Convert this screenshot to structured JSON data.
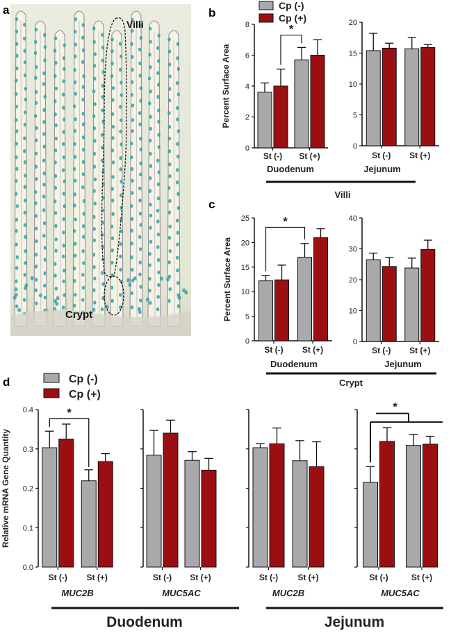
{
  "colors": {
    "cp_neg": "#a9a9ab",
    "cp_pos": "#9b0f12",
    "tissue_bg": "#eef0e2",
    "villus_body": "#f6f4e6",
    "goblet": "#2aa3a6",
    "outline": "#1a1a1a"
  },
  "panel_a": {
    "letter": "a",
    "villi_label": "Villi",
    "crypt_label": "Crypt"
  },
  "panel_b": {
    "letter": "b",
    "group_labels": [
      "Duodenum",
      "Jejunum"
    ],
    "bracket_label": "Villi"
  },
  "panel_c": {
    "letter": "c",
    "group_labels": [
      "Duodenum",
      "Jejunum"
    ],
    "bracket_label": "Crypt"
  },
  "panel_d": {
    "letter": "d",
    "tissue_labels": [
      "Duodenum",
      "Jejunum"
    ]
  },
  "chart_data": [
    {
      "panel": "b",
      "type": "bar",
      "subplots": [
        {
          "group": "Duodenum",
          "categories": [
            "St (-)",
            "St (+)"
          ],
          "ylabel": "Percent Surface Area",
          "ylim": [
            0,
            8
          ],
          "yticks": [
            0,
            2,
            4,
            6,
            8
          ],
          "series": [
            {
              "name": "Cp (-)",
              "values": [
                3.6,
                5.7
              ],
              "errors": [
                0.6,
                0.8
              ]
            },
            {
              "name": "Cp (+)",
              "values": [
                4.0,
                6.0
              ],
              "errors": [
                1.1,
                1.0
              ]
            }
          ],
          "significance": "*"
        },
        {
          "group": "Jejunum",
          "categories": [
            "St (-)",
            "St (+)"
          ],
          "ylim": [
            0,
            20
          ],
          "yticks": [
            0,
            5,
            10,
            15,
            20
          ],
          "series": [
            {
              "name": "Cp (-)",
              "values": [
                15.4,
                15.7
              ],
              "errors": [
                2.8,
                1.8
              ]
            },
            {
              "name": "Cp (+)",
              "values": [
                15.8,
                15.9
              ],
              "errors": [
                0.8,
                0.5
              ]
            }
          ]
        }
      ],
      "legend": [
        "Cp (-)",
        "Cp (+)"
      ],
      "group_bracket": "Villi"
    },
    {
      "panel": "c",
      "type": "bar",
      "subplots": [
        {
          "group": "Duodenum",
          "categories": [
            "St (-)",
            "St (+)"
          ],
          "ylabel": "Percent Surface Area",
          "ylim": [
            0,
            25
          ],
          "yticks": [
            0,
            5,
            10,
            15,
            20,
            25
          ],
          "series": [
            {
              "name": "Cp (-)",
              "values": [
                12.2,
                17.0
              ],
              "errors": [
                1.1,
                2.8
              ]
            },
            {
              "name": "Cp (+)",
              "values": [
                12.4,
                21.0
              ],
              "errors": [
                3.0,
                1.8
              ]
            }
          ],
          "significance": "*"
        },
        {
          "group": "Jejunum",
          "categories": [
            "St (-)",
            "St (+)"
          ],
          "ylim": [
            0,
            40
          ],
          "yticks": [
            0,
            10,
            20,
            30,
            40
          ],
          "series": [
            {
              "name": "Cp (-)",
              "values": [
                26.5,
                23.8
              ],
              "errors": [
                2.1,
                3.2
              ]
            },
            {
              "name": "Cp (+)",
              "values": [
                24.3,
                29.8
              ],
              "errors": [
                2.9,
                3.0
              ]
            }
          ]
        }
      ],
      "group_bracket": "Crypt"
    },
    {
      "panel": "d",
      "type": "bar",
      "ylabel": "Relative mRNA Gene Quantity",
      "ylim": [
        0,
        0.4
      ],
      "yticks": [
        0.0,
        0.1,
        0.2,
        0.3,
        0.4
      ],
      "legend": [
        "Cp (-)",
        "Cp (+)"
      ],
      "subplots": [
        {
          "gene": "MUC2B",
          "tissue": "Duodenum",
          "categories": [
            "St (-)",
            "St (+)"
          ],
          "series": [
            {
              "name": "Cp (-)",
              "values": [
                0.303,
                0.219
              ],
              "errors": [
                0.042,
                0.028
              ]
            },
            {
              "name": "Cp (+)",
              "values": [
                0.325,
                0.268
              ],
              "errors": [
                0.038,
                0.02
              ]
            }
          ],
          "significance": "*"
        },
        {
          "gene": "MUC5AC",
          "tissue": "Duodenum",
          "categories": [
            "St (-)",
            "St (+)"
          ],
          "series": [
            {
              "name": "Cp (-)",
              "values": [
                0.284,
                0.271
              ],
              "errors": [
                0.063,
                0.022
              ]
            },
            {
              "name": "Cp (+)",
              "values": [
                0.34,
                0.246
              ],
              "errors": [
                0.033,
                0.03
              ]
            }
          ]
        },
        {
          "gene": "MUC2B",
          "tissue": "Jejunum",
          "categories": [
            "St (-)",
            "St (+)"
          ],
          "series": [
            {
              "name": "Cp (-)",
              "values": [
                0.303,
                0.27
              ],
              "errors": [
                0.01,
                0.051
              ]
            },
            {
              "name": "Cp (+)",
              "values": [
                0.313,
                0.255
              ],
              "errors": [
                0.04,
                0.063
              ]
            }
          ]
        },
        {
          "gene": "MUC5AC",
          "tissue": "Jejunum",
          "categories": [
            "St (-)",
            "St (+)"
          ],
          "series": [
            {
              "name": "Cp (-)",
              "values": [
                0.215,
                0.309
              ],
              "errors": [
                0.04,
                0.028
              ]
            },
            {
              "name": "Cp (+)",
              "values": [
                0.319,
                0.312
              ],
              "errors": [
                0.035,
                0.02
              ]
            }
          ],
          "significance": "*"
        }
      ]
    }
  ]
}
